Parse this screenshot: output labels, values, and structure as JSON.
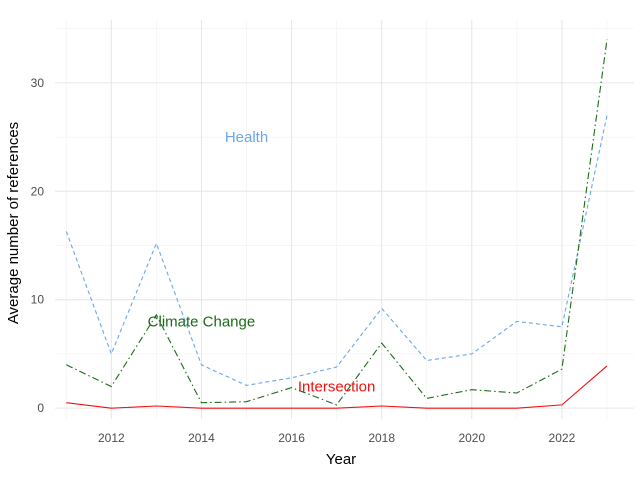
{
  "chart_data": {
    "type": "line",
    "title": "",
    "xlabel": "Year",
    "ylabel": "Average number of references",
    "xlim": [
      2010.75,
      2023.6
    ],
    "ylim": [
      -1.0,
      35.8
    ],
    "x_ticks": [
      2012,
      2014,
      2016,
      2018,
      2020,
      2022
    ],
    "y_ticks": [
      0,
      10,
      20,
      30
    ],
    "grid": true,
    "legend": "none",
    "x": [
      2011,
      2012,
      2013,
      2014,
      2015,
      2016,
      2017,
      2018,
      2019,
      2020,
      2021,
      2022,
      2023
    ],
    "series": [
      {
        "name": "Health",
        "color": "#6aa6ec",
        "dash": "dashed",
        "values": [
          16.3,
          5.0,
          15.2,
          4.0,
          2.1,
          2.8,
          3.8,
          9.2,
          4.4,
          5.0,
          8.0,
          7.5,
          27.0
        ],
        "label_x": 2015.0,
        "label_y": 25.0
      },
      {
        "name": "Climate Change",
        "color": "#1a6b1a",
        "dash": "dashdot",
        "values": [
          4.0,
          2.0,
          8.6,
          0.5,
          0.6,
          1.9,
          0.3,
          6.0,
          0.9,
          1.7,
          1.4,
          3.6,
          34.0
        ],
        "label_x": 2014.0,
        "label_y": 8.0
      },
      {
        "name": "Intersection",
        "color": "#ee1111",
        "dash": "solid",
        "values": [
          0.5,
          0.0,
          0.2,
          0.0,
          0.0,
          0.0,
          0.0,
          0.2,
          0.0,
          0.0,
          0.0,
          0.3,
          3.9
        ],
        "label_x": 2017.0,
        "label_y": 2.0
      }
    ]
  }
}
